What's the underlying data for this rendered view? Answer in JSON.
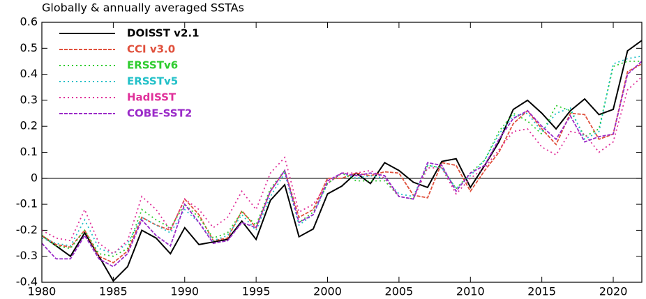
{
  "chart_data": {
    "type": "line",
    "title": "Globally & annually averaged SSTAs",
    "x": [
      1980,
      1981,
      1982,
      1983,
      1984,
      1985,
      1986,
      1987,
      1988,
      1989,
      1990,
      1991,
      1992,
      1993,
      1994,
      1995,
      1996,
      1997,
      1998,
      1999,
      2000,
      2001,
      2002,
      2003,
      2004,
      2005,
      2006,
      2007,
      2008,
      2009,
      2010,
      2011,
      2012,
      2013,
      2014,
      2015,
      2016,
      2017,
      2018,
      2019,
      2020,
      2021,
      2022
    ],
    "xlim": [
      1980,
      2022
    ],
    "xticks": [
      1980,
      1985,
      1990,
      1995,
      2000,
      2005,
      2010,
      2015,
      2020
    ],
    "ylim": [
      -0.4,
      0.6
    ],
    "yticks": [
      -0.4,
      -0.3,
      -0.2,
      -0.1,
      0,
      0.1,
      0.2,
      0.3,
      0.4,
      0.5,
      0.6
    ],
    "legend": "upper-left",
    "series": [
      {
        "name": "DOISST v2.1",
        "color": "#000000",
        "style": "solid",
        "values": [
          -0.22,
          -0.26,
          -0.3,
          -0.21,
          -0.3,
          -0.395,
          -0.34,
          -0.2,
          -0.23,
          -0.29,
          -0.19,
          -0.255,
          -0.245,
          -0.235,
          -0.165,
          -0.235,
          -0.085,
          -0.025,
          -0.225,
          -0.195,
          -0.06,
          -0.03,
          0.02,
          -0.02,
          0.06,
          0.03,
          -0.015,
          -0.035,
          0.065,
          0.075,
          -0.035,
          0.05,
          0.14,
          0.265,
          0.3,
          0.25,
          0.19,
          0.26,
          0.305,
          0.245,
          0.265,
          0.49,
          0.53
        ]
      },
      {
        "name": "CCI v3.0",
        "color": "#e0503c",
        "style": "dashed",
        "values": [
          -0.22,
          -0.255,
          -0.265,
          -0.2,
          -0.3,
          -0.325,
          -0.28,
          -0.15,
          -0.18,
          -0.2,
          -0.08,
          -0.14,
          -0.24,
          -0.23,
          -0.125,
          -0.19,
          -0.05,
          0.03,
          -0.15,
          -0.12,
          0.0,
          0.0,
          0.02,
          0.01,
          0.025,
          0.02,
          -0.065,
          -0.075,
          0.06,
          0.05,
          -0.05,
          0.03,
          0.1,
          0.21,
          0.26,
          0.19,
          0.13,
          0.25,
          0.245,
          0.15,
          0.17,
          0.41,
          0.44
        ]
      },
      {
        "name": "ERSSTv6",
        "color": "#2ecc2e",
        "style": "dotted",
        "values": [
          -0.22,
          -0.26,
          -0.27,
          -0.2,
          -0.29,
          -0.3,
          -0.27,
          -0.12,
          -0.16,
          -0.19,
          -0.1,
          -0.15,
          -0.23,
          -0.21,
          -0.13,
          -0.18,
          -0.04,
          0.03,
          -0.17,
          -0.13,
          -0.02,
          0.02,
          -0.01,
          -0.01,
          -0.01,
          -0.07,
          -0.08,
          0.05,
          0.04,
          -0.04,
          0.02,
          0.07,
          0.18,
          0.25,
          0.22,
          0.17,
          0.28,
          0.26,
          0.16,
          0.19,
          0.43,
          0.45,
          0.45
        ]
      },
      {
        "name": "ERSSTv5",
        "color": "#22c0c8",
        "style": "dotted",
        "values": [
          -0.23,
          -0.25,
          -0.26,
          -0.16,
          -0.27,
          -0.29,
          -0.25,
          -0.15,
          -0.18,
          -0.21,
          -0.12,
          -0.17,
          -0.24,
          -0.22,
          -0.14,
          -0.2,
          -0.07,
          0.02,
          -0.18,
          -0.14,
          -0.02,
          0.02,
          0.0,
          0.01,
          0.0,
          -0.06,
          -0.07,
          0.05,
          0.04,
          -0.04,
          0.01,
          0.07,
          0.17,
          0.24,
          0.25,
          0.18,
          0.25,
          0.27,
          0.15,
          0.18,
          0.44,
          0.46,
          0.47
        ]
      },
      {
        "name": "HadISST",
        "color": "#e0309a",
        "style": "dotted",
        "values": [
          -0.2,
          -0.23,
          -0.24,
          -0.12,
          -0.25,
          -0.29,
          -0.24,
          -0.07,
          -0.12,
          -0.2,
          -0.08,
          -0.12,
          -0.19,
          -0.15,
          -0.05,
          -0.12,
          0.02,
          0.08,
          -0.13,
          -0.1,
          -0.02,
          0.02,
          0.02,
          0.03,
          0.0,
          -0.07,
          -0.08,
          0.04,
          0.04,
          -0.06,
          0.0,
          0.04,
          0.11,
          0.18,
          0.19,
          0.12,
          0.09,
          0.18,
          0.17,
          0.1,
          0.14,
          0.34,
          0.39
        ]
      },
      {
        "name": "COBE-SST2",
        "color": "#9a2ac8",
        "style": "dashed",
        "values": [
          -0.25,
          -0.31,
          -0.31,
          -0.22,
          -0.31,
          -0.34,
          -0.29,
          -0.16,
          -0.22,
          -0.26,
          -0.1,
          -0.17,
          -0.25,
          -0.24,
          -0.17,
          -0.19,
          -0.05,
          0.03,
          -0.17,
          -0.14,
          -0.01,
          0.02,
          0.01,
          0.02,
          0.01,
          -0.07,
          -0.08,
          0.06,
          0.05,
          -0.05,
          0.02,
          0.05,
          0.15,
          0.23,
          0.26,
          0.2,
          0.15,
          0.24,
          0.14,
          0.16,
          0.17,
          0.4,
          0.45
        ]
      }
    ]
  }
}
